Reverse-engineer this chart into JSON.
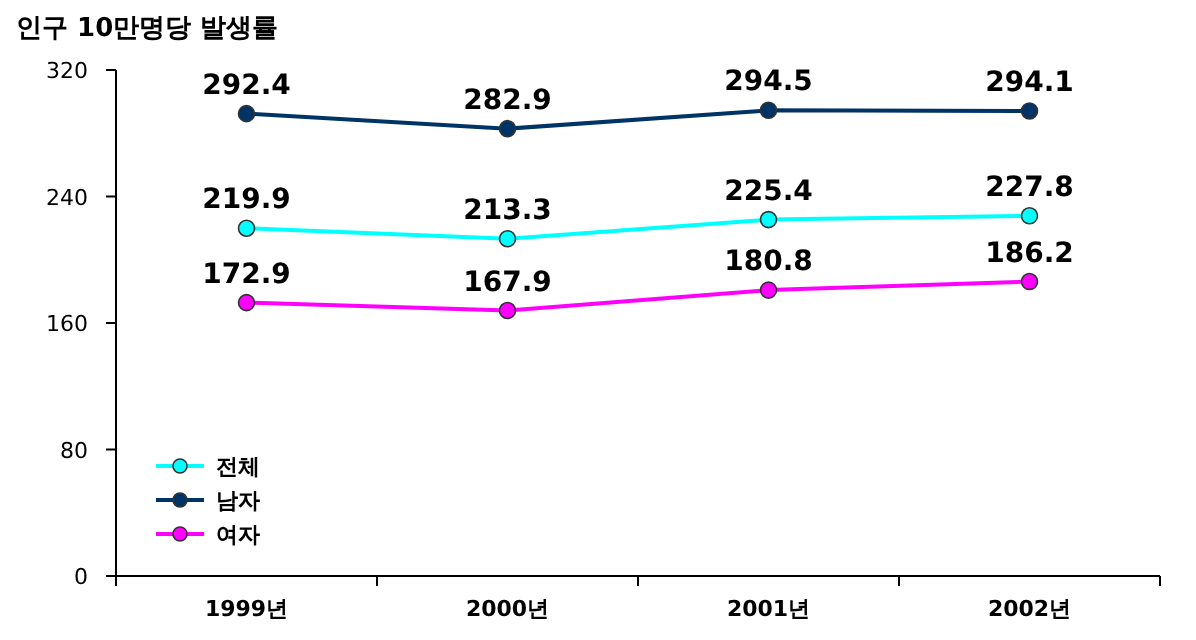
{
  "chart_data": {
    "type": "line",
    "title": "인구 10만명당 발생률",
    "categories": [
      "1999년",
      "2000년",
      "2001년",
      "2002년"
    ],
    "series": [
      {
        "name": "전체",
        "color": "#00ffff",
        "values": [
          219.9,
          213.3,
          225.4,
          227.8
        ]
      },
      {
        "name": "남자",
        "color": "#003366",
        "values": [
          292.4,
          282.9,
          294.5,
          294.1
        ]
      },
      {
        "name": "여자",
        "color": "#ff00ff",
        "values": [
          172.9,
          167.9,
          180.8,
          186.2
        ]
      }
    ],
    "ylim": [
      0,
      320
    ],
    "yticks": [
      0,
      80,
      160,
      240,
      320
    ],
    "data_labels": true,
    "marker": "circle",
    "legend": "bottom left",
    "grid": false
  }
}
